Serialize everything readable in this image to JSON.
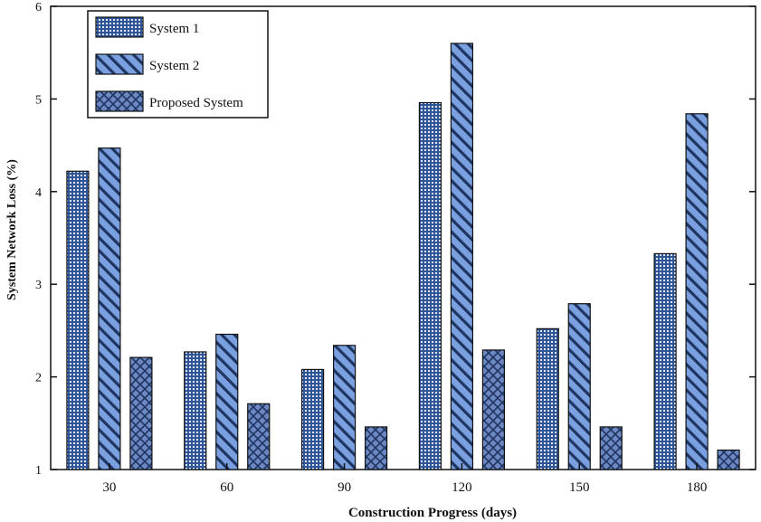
{
  "chart_data": {
    "type": "bar",
    "title": "",
    "xlabel": "Construction Progress (days)",
    "ylabel": "System Network Loss (%)",
    "categories": [
      "30",
      "60",
      "90",
      "120",
      "150",
      "180"
    ],
    "series": [
      {
        "name": "System 1",
        "values": [
          4.22,
          2.27,
          2.08,
          4.96,
          2.52,
          3.33
        ],
        "color": "#2f5597",
        "pattern": "dots"
      },
      {
        "name": "System 2",
        "values": [
          4.47,
          2.46,
          2.34,
          5.6,
          2.79,
          4.84
        ],
        "color": "#6f93d6",
        "pattern": "diagonal-stripes"
      },
      {
        "name": "Proposed System",
        "values": [
          2.21,
          1.71,
          1.46,
          2.29,
          1.46,
          1.21
        ],
        "color": "#5d7dbb",
        "pattern": "crosshatch"
      }
    ],
    "ylim": [
      1,
      6
    ],
    "yticks": [
      "1",
      "2",
      "3",
      "4",
      "5",
      "6"
    ],
    "grid": false,
    "legend_position": "top-left"
  }
}
